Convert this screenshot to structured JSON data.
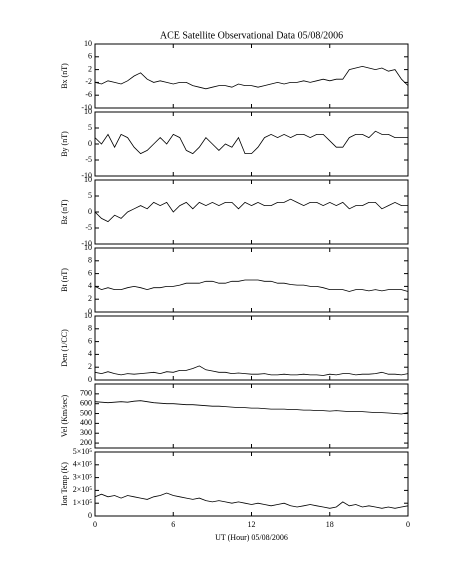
{
  "chart_data": [
    {
      "type": "line",
      "title": "ACE Satellite Observational Data   05/08/2006",
      "ylabel": "Bx (nT)",
      "x": [
        0,
        0.5,
        1,
        1.5,
        2,
        2.5,
        3,
        3.5,
        4,
        4.5,
        5,
        5.5,
        6,
        6.5,
        7,
        7.5,
        8,
        8.5,
        9,
        9.5,
        10,
        10.5,
        11,
        11.5,
        12,
        12.5,
        13,
        13.5,
        14,
        14.5,
        15,
        15.5,
        16,
        16.5,
        17,
        17.5,
        18,
        18.5,
        19,
        19.5,
        20,
        20.5,
        21,
        21.5,
        22,
        22.5,
        23,
        23.5,
        24
      ],
      "values": [
        -2,
        -2.5,
        -1.5,
        -2,
        -2.5,
        -1.5,
        0,
        1,
        -1,
        -2,
        -1.5,
        -2,
        -2.5,
        -2,
        -2,
        -3,
        -3.5,
        -4,
        -3.5,
        -3,
        -3,
        -3.5,
        -2.5,
        -3,
        -3,
        -3.5,
        -3,
        -2.5,
        -2,
        -2.5,
        -2,
        -2,
        -1.5,
        -2,
        -1.5,
        -1,
        -1.5,
        -1,
        -1,
        2,
        2.5,
        3,
        2.5,
        2,
        2.5,
        1.5,
        2,
        -1,
        -3
      ],
      "xlim": [
        0,
        24
      ],
      "xticks": [
        0,
        6,
        12,
        18,
        {
          "value": 24,
          "label": "0"
        }
      ],
      "ylim": [
        -10,
        10
      ],
      "yticks": [
        -10,
        -6,
        -2,
        2,
        6,
        10
      ]
    },
    {
      "type": "line",
      "ylabel": "By (nT)",
      "x": [
        0,
        0.5,
        1,
        1.5,
        2,
        2.5,
        3,
        3.5,
        4,
        4.5,
        5,
        5.5,
        6,
        6.5,
        7,
        7.5,
        8,
        8.5,
        9,
        9.5,
        10,
        10.5,
        11,
        11.5,
        12,
        12.5,
        13,
        13.5,
        14,
        14.5,
        15,
        15.5,
        16,
        16.5,
        17,
        17.5,
        18,
        18.5,
        19,
        19.5,
        20,
        20.5,
        21,
        21.5,
        22,
        22.5,
        23,
        23.5,
        24
      ],
      "values": [
        2,
        0,
        3,
        -1,
        3,
        2,
        -1,
        -3,
        -2,
        0,
        2,
        0,
        3,
        2,
        -2,
        -3,
        -1,
        2,
        0,
        -2,
        0,
        -1,
        2,
        -3,
        -3,
        -1,
        2,
        3,
        2,
        3,
        2,
        3,
        3,
        2,
        3,
        3,
        1,
        -1,
        -1,
        2,
        3,
        3,
        2,
        4,
        3,
        3,
        2,
        2,
        2
      ],
      "xlim": [
        0,
        24
      ],
      "xticks": [
        0,
        6,
        12,
        18,
        {
          "value": 24,
          "label": "0"
        }
      ],
      "ylim": [
        -10,
        10
      ],
      "yticks": [
        -10,
        -5,
        0,
        5,
        10
      ]
    },
    {
      "type": "line",
      "ylabel": "Bz (nT)",
      "x": [
        0,
        0.5,
        1,
        1.5,
        2,
        2.5,
        3,
        3.5,
        4,
        4.5,
        5,
        5.5,
        6,
        6.5,
        7,
        7.5,
        8,
        8.5,
        9,
        9.5,
        10,
        10.5,
        11,
        11.5,
        12,
        12.5,
        13,
        13.5,
        14,
        14.5,
        15,
        15.5,
        16,
        16.5,
        17,
        17.5,
        18,
        18.5,
        19,
        19.5,
        20,
        20.5,
        21,
        21.5,
        22,
        22.5,
        23,
        23.5,
        24
      ],
      "values": [
        0,
        -2,
        -3,
        -1,
        -2,
        0,
        1,
        2,
        1,
        3,
        2,
        3,
        0,
        2,
        3,
        1,
        3,
        2,
        3,
        2,
        3,
        3,
        1,
        3,
        2,
        3,
        2,
        2,
        3,
        3,
        4,
        3,
        2,
        3,
        3,
        2,
        3,
        2,
        3,
        1,
        2,
        2,
        3,
        3,
        1,
        2,
        3,
        2,
        2
      ],
      "xlim": [
        0,
        24
      ],
      "xticks": [
        0,
        6,
        12,
        18,
        {
          "value": 24,
          "label": "0"
        }
      ],
      "ylim": [
        -10,
        10
      ],
      "yticks": [
        -10,
        -5,
        0,
        5,
        10
      ]
    },
    {
      "type": "line",
      "ylabel": "Bt (nT)",
      "x": [
        0,
        0.5,
        1,
        1.5,
        2,
        2.5,
        3,
        3.5,
        4,
        4.5,
        5,
        5.5,
        6,
        6.5,
        7,
        7.5,
        8,
        8.5,
        9,
        9.5,
        10,
        10.5,
        11,
        11.5,
        12,
        12.5,
        13,
        13.5,
        14,
        14.5,
        15,
        15.5,
        16,
        16.5,
        17,
        17.5,
        18,
        18.5,
        19,
        19.5,
        20,
        20.5,
        21,
        21.5,
        22,
        22.5,
        23,
        23.5,
        24
      ],
      "values": [
        4,
        3.5,
        3.8,
        3.5,
        3.5,
        3.8,
        4,
        3.8,
        3.5,
        3.8,
        3.8,
        4,
        4,
        4.2,
        4.5,
        4.5,
        4.5,
        4.8,
        4.8,
        4.5,
        4.5,
        4.8,
        4.8,
        5,
        5,
        5,
        4.8,
        4.8,
        4.5,
        4.5,
        4.3,
        4.2,
        4.2,
        4,
        4,
        3.8,
        3.5,
        3.5,
        3.5,
        3.2,
        3.5,
        3.5,
        3.3,
        3.5,
        3.3,
        3.5,
        3.5,
        3.5,
        3.2
      ],
      "xlim": [
        0,
        24
      ],
      "xticks": [
        0,
        6,
        12,
        18,
        {
          "value": 24,
          "label": "0"
        }
      ],
      "ylim": [
        0,
        10
      ],
      "yticks": [
        0,
        2,
        4,
        6,
        8,
        10
      ]
    },
    {
      "type": "line",
      "ylabel": "Den (1/CC)",
      "x": [
        0,
        0.5,
        1,
        1.5,
        2,
        2.5,
        3,
        3.5,
        4,
        4.5,
        5,
        5.5,
        6,
        6.5,
        7,
        7.5,
        8,
        8.5,
        9,
        9.5,
        10,
        10.5,
        11,
        11.5,
        12,
        12.5,
        13,
        13.5,
        14,
        14.5,
        15,
        15.5,
        16,
        16.5,
        17,
        17.5,
        18,
        18.5,
        19,
        19.5,
        20,
        20.5,
        21,
        21.5,
        22,
        22.5,
        23,
        23.5,
        24
      ],
      "values": [
        1.2,
        1,
        1.3,
        1,
        0.8,
        1,
        0.9,
        1,
        1.1,
        1.2,
        1,
        1.3,
        1.2,
        1.5,
        1.5,
        1.8,
        2.2,
        1.6,
        1.4,
        1.2,
        1.2,
        1,
        1.1,
        1,
        0.9,
        0.9,
        1,
        0.8,
        0.8,
        0.9,
        0.8,
        0.8,
        0.9,
        0.8,
        0.8,
        0.7,
        0.9,
        0.8,
        1,
        1,
        0.8,
        0.9,
        0.9,
        1,
        1.2,
        0.9,
        0.9,
        0.8,
        1
      ],
      "xlim": [
        0,
        24
      ],
      "xticks": [
        0,
        6,
        12,
        18,
        {
          "value": 24,
          "label": "0"
        }
      ],
      "ylim": [
        0,
        10
      ],
      "yticks": [
        0,
        2,
        4,
        6,
        8,
        10
      ]
    },
    {
      "type": "line",
      "ylabel": "Vel (Km/sec)",
      "x": [
        0,
        0.5,
        1,
        1.5,
        2,
        2.5,
        3,
        3.5,
        4,
        4.5,
        5,
        5.5,
        6,
        6.5,
        7,
        7.5,
        8,
        8.5,
        9,
        9.5,
        10,
        10.5,
        11,
        11.5,
        12,
        12.5,
        13,
        13.5,
        14,
        14.5,
        15,
        15.5,
        16,
        16.5,
        17,
        17.5,
        18,
        18.5,
        19,
        19.5,
        20,
        20.5,
        21,
        21.5,
        22,
        22.5,
        23,
        23.5,
        24
      ],
      "values": [
        620,
        615,
        610,
        615,
        620,
        615,
        625,
        630,
        620,
        610,
        605,
        600,
        600,
        595,
        590,
        590,
        585,
        580,
        575,
        575,
        570,
        565,
        560,
        560,
        555,
        555,
        550,
        545,
        545,
        545,
        540,
        540,
        535,
        535,
        530,
        530,
        525,
        530,
        525,
        520,
        520,
        520,
        515,
        510,
        510,
        505,
        500,
        495,
        510
      ],
      "xlim": [
        0,
        24
      ],
      "xticks": [
        0,
        6,
        12,
        18,
        {
          "value": 24,
          "label": "0"
        }
      ],
      "ylim": [
        150,
        800
      ],
      "yticks": [
        200,
        300,
        400,
        500,
        600,
        700
      ]
    },
    {
      "type": "line",
      "ylabel": "Ion Temp (K)",
      "xlabel": "UT (Hour)   05/08/2006",
      "x": [
        0,
        0.5,
        1,
        1.5,
        2,
        2.5,
        3,
        3.5,
        4,
        4.5,
        5,
        5.5,
        6,
        6.5,
        7,
        7.5,
        8,
        8.5,
        9,
        9.5,
        10,
        10.5,
        11,
        11.5,
        12,
        12.5,
        13,
        13.5,
        14,
        14.5,
        15,
        15.5,
        16,
        16.5,
        17,
        17.5,
        18,
        18.5,
        19,
        19.5,
        20,
        20.5,
        21,
        21.5,
        22,
        22.5,
        23,
        23.5,
        24
      ],
      "values": [
        150000,
        170000,
        150000,
        160000,
        140000,
        160000,
        150000,
        140000,
        130000,
        150000,
        160000,
        180000,
        160000,
        150000,
        140000,
        130000,
        140000,
        120000,
        110000,
        120000,
        110000,
        100000,
        110000,
        100000,
        90000,
        100000,
        90000,
        80000,
        90000,
        100000,
        80000,
        70000,
        80000,
        90000,
        80000,
        70000,
        60000,
        70000,
        110000,
        80000,
        90000,
        70000,
        80000,
        70000,
        60000,
        70000,
        60000,
        70000,
        80000
      ],
      "xlim": [
        0,
        24
      ],
      "xticks": [
        0,
        6,
        12,
        18,
        {
          "value": 24,
          "label": "0"
        }
      ],
      "ylim": [
        0,
        500000
      ],
      "yticks": [
        0,
        {
          "value": 100000,
          "label": "1×10⁵"
        },
        {
          "value": 200000,
          "label": "2×10⁵"
        },
        {
          "value": 300000,
          "label": "3×10⁵"
        },
        {
          "value": 400000,
          "label": "4×10⁵"
        },
        {
          "value": 500000,
          "label": "5×10⁵"
        }
      ]
    }
  ]
}
